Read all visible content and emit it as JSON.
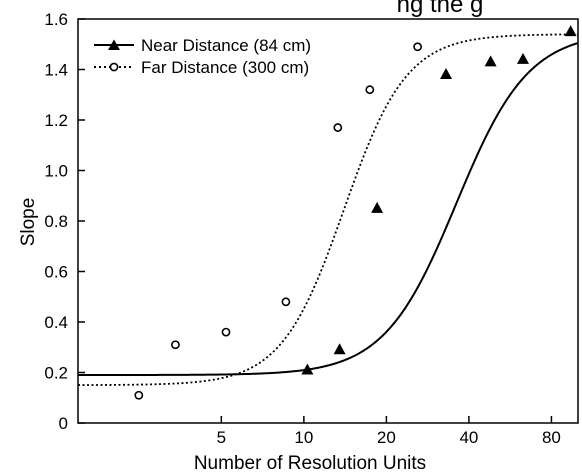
{
  "chart_data": {
    "type": "scatter",
    "title": "",
    "partial_title": "ng the g",
    "xlabel": "Number of Resolution Units",
    "ylabel": "Slope",
    "xscale": "log2",
    "xlim": [
      1.5,
      100
    ],
    "ylim": [
      0,
      1.6
    ],
    "xticks": [
      5,
      10,
      20,
      40,
      80
    ],
    "xtick_labels": [
      "5",
      "10",
      "20",
      "40",
      "80"
    ],
    "yticks": [
      0,
      0.2,
      0.4,
      0.6,
      0.8,
      1.0,
      1.2,
      1.4,
      1.6
    ],
    "ytick_labels": [
      "0",
      "0.2",
      "0.4",
      "0.6",
      "0.8",
      "1.0",
      "1.2",
      "1.4",
      "1.6"
    ],
    "grid": false,
    "legend_position": "top-left",
    "series": [
      {
        "name": "Near Distance (84 cm)",
        "marker": "filled-triangle",
        "line_style": "solid",
        "points": [
          {
            "x": 10.3,
            "y": 0.21
          },
          {
            "x": 13.5,
            "y": 0.29
          },
          {
            "x": 18.5,
            "y": 0.85
          },
          {
            "x": 33,
            "y": 1.38
          },
          {
            "x": 48,
            "y": 1.43
          },
          {
            "x": 63,
            "y": 1.44
          },
          {
            "x": 94,
            "y": 1.55
          }
        ],
        "fit": {
          "lower": 0.19,
          "upper": 1.55,
          "x50": 36,
          "slope": 3.3
        }
      },
      {
        "name": "Far Distance (300 cm)",
        "marker": "open-circle",
        "line_style": "dotted",
        "points": [
          {
            "x": 2.5,
            "y": 0.11
          },
          {
            "x": 3.4,
            "y": 0.31
          },
          {
            "x": 5.2,
            "y": 0.36
          },
          {
            "x": 8.6,
            "y": 0.48
          },
          {
            "x": 13.3,
            "y": 1.17
          },
          {
            "x": 17.4,
            "y": 1.32
          },
          {
            "x": 26,
            "y": 1.49
          }
        ],
        "fit": {
          "lower": 0.15,
          "upper": 1.54,
          "x50": 14,
          "slope": 3.8
        }
      }
    ]
  }
}
